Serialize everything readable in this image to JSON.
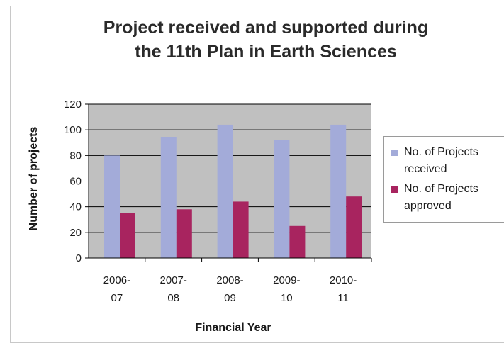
{
  "chart_data": {
    "type": "bar",
    "title_lines": [
      "Project received and supported during",
      "the 11th  Plan in Earth Sciences"
    ],
    "xlabel": "Financial Year",
    "ylabel": "Number of projects",
    "categories": [
      {
        "line1": "2006-",
        "line2": "07"
      },
      {
        "line1": "2007-",
        "line2": "08"
      },
      {
        "line1": "2008-",
        "line2": "09"
      },
      {
        "line1": "2009-",
        "line2": "10"
      },
      {
        "line1": "2010-",
        "line2": "11"
      }
    ],
    "series": [
      {
        "name": "No. of Projects received",
        "legend_lines": "No. of Projects\nreceived",
        "color": "#a3abd9",
        "values": [
          80,
          94,
          104,
          92,
          104
        ]
      },
      {
        "name": "No. of Projects approved",
        "legend_lines": "No. of Projects\napproved",
        "color": "#a8245f",
        "values": [
          35,
          38,
          44,
          25,
          48
        ]
      }
    ],
    "yticks": [
      "0",
      "20",
      "40",
      "60",
      "80",
      "100",
      "120"
    ],
    "ylim": [
      0,
      120
    ],
    "grid": true,
    "plot_background": "#c0c0c0",
    "legend_position": "right"
  }
}
